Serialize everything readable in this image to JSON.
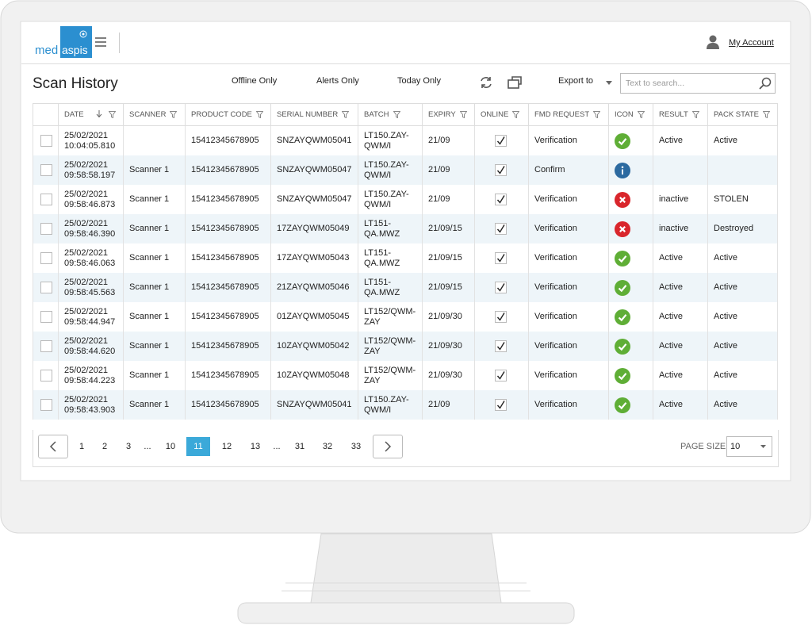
{
  "header": {
    "logo_left": "med",
    "logo_right": "aspis",
    "account": "My Account"
  },
  "toolbar": {
    "title": "Scan History",
    "filters": [
      "Offline Only",
      "Alerts Only",
      "Today Only"
    ],
    "export": "Export to",
    "search_placeholder": "Text to search..."
  },
  "table": {
    "columns": [
      "DATE",
      "SCANNER",
      "PRODUCT CODE",
      "SERIAL NUMBER",
      "BATCH",
      "EXPIRY",
      "ONLINE",
      "FMD REQUEST",
      "ICON",
      "RESULT",
      "PACK STATE"
    ],
    "rows": [
      [
        "25/02/2021\n10:04:05.810",
        null,
        "15412345678905",
        "SNZAYQWM05041",
        "LT150.ZAY-QWM/I",
        "21/09",
        true,
        "Verification",
        "ok",
        "Active",
        "Active"
      ],
      [
        "25/02/2021\n09:58:58.197",
        "Scanner 1",
        "15412345678905",
        "SNZAYQWM05047",
        "LT150.ZAY-QWM/I",
        "21/09",
        true,
        "Confirm",
        "info",
        null,
        null
      ],
      [
        "25/02/2021\n09:58:46.873",
        "Scanner 1",
        "15412345678905",
        "SNZAYQWM05047",
        "LT150.ZAY-QWM/I",
        "21/09",
        true,
        "Verification",
        "error",
        "inactive",
        "STOLEN"
      ],
      [
        "25/02/2021\n09:58:46.390",
        "Scanner 1",
        "15412345678905",
        "17ZAYQWM05049",
        "LT151-QA.MWZ",
        "21/09/15",
        true,
        "Verification",
        "error",
        "inactive",
        "Destroyed"
      ],
      [
        "25/02/2021\n09:58:46.063",
        "Scanner 1",
        "15412345678905",
        "17ZAYQWM05043",
        "LT151-QA.MWZ",
        "21/09/15",
        true,
        "Verification",
        "ok",
        "Active",
        "Active"
      ],
      [
        "25/02/2021\n09:58:45.563",
        "Scanner 1",
        "15412345678905",
        "21ZAYQWM05046",
        "LT151-QA.MWZ",
        "21/09/15",
        true,
        "Verification",
        "ok",
        "Active",
        "Active"
      ],
      [
        "25/02/2021\n09:58:44.947",
        "Scanner 1",
        "15412345678905",
        "01ZAYQWM05045",
        "LT152/QWM-ZAY",
        "21/09/30",
        true,
        "Verification",
        "ok",
        "Active",
        "Active"
      ],
      [
        "25/02/2021\n09:58:44.620",
        "Scanner 1",
        "15412345678905",
        "10ZAYQWM05042",
        "LT152/QWM-ZAY",
        "21/09/30",
        true,
        "Verification",
        "ok",
        "Active",
        "Active"
      ],
      [
        "25/02/2021\n09:58:44.223",
        "Scanner 1",
        "15412345678905",
        "10ZAYQWM05048",
        "LT152/QWM-ZAY",
        "21/09/30",
        true,
        "Verification",
        "ok",
        "Active",
        "Active"
      ],
      [
        "25/02/2021\n09:58:43.903",
        "Scanner 1",
        "15412345678905",
        "SNZAYQWM05041",
        "LT150.ZAY-QWM/I",
        "21/09",
        true,
        "Verification",
        "ok",
        "Active",
        "Active"
      ]
    ]
  },
  "pagination": {
    "pages": [
      "1",
      "2",
      "3",
      "...",
      "10",
      "11",
      "12",
      "13",
      "...",
      "31",
      "32",
      "33"
    ],
    "current": "11",
    "page_size_label": "PAGE SIZE",
    "page_size": "10"
  }
}
